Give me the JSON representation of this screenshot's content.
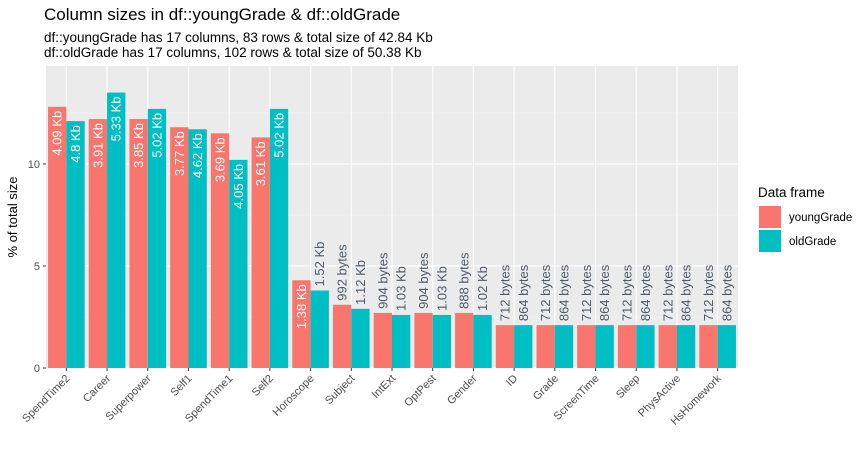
{
  "chart_data": {
    "type": "bar",
    "title": "Column sizes in df::youngGrade & df::oldGrade",
    "subtitle_lines": [
      "df::youngGrade has 17 columns, 83 rows & total size of 42.84 Kb",
      "df::oldGrade has 17 columns, 102 rows & total size of 50.38 Kb"
    ],
    "xlabel": "",
    "ylabel": "% of total size",
    "ylim": [
      0,
      14.8
    ],
    "yticks": [
      0,
      5,
      10
    ],
    "grid": true,
    "legend": {
      "title": "Data frame",
      "position": "right"
    },
    "categories": [
      "SpendTime2",
      "Career",
      "Superpower",
      "Self1",
      "SpendTime1",
      "Self2",
      "Horoscope",
      "Subject",
      "IntExt",
      "OptPest",
      "Gender",
      "ID",
      "Grade",
      "ScreenTime",
      "Sleep",
      "PhysActive",
      "HsHomework"
    ],
    "series": [
      {
        "name": "youngGrade",
        "color": "#F8766D",
        "values": [
          12.8,
          12.2,
          12.2,
          11.8,
          11.5,
          11.3,
          4.3,
          3.1,
          2.7,
          2.7,
          2.7,
          2.1,
          2.1,
          2.1,
          2.1,
          2.1,
          2.1
        ],
        "labels": [
          "4.09 Kb",
          "3.91 Kb",
          "3.85 Kb",
          "3.77 Kb",
          "3.69 Kb",
          "3.61 Kb",
          "1.38 Kb",
          "992 bytes",
          "904 bytes",
          "904 bytes",
          "888 bytes",
          "712 bytes",
          "712 bytes",
          "712 bytes",
          "712 bytes",
          "712 bytes",
          "712 bytes"
        ]
      },
      {
        "name": "oldGrade",
        "color": "#00BFC4",
        "values": [
          12.1,
          13.5,
          12.7,
          11.7,
          10.2,
          12.7,
          3.8,
          2.9,
          2.6,
          2.6,
          2.6,
          2.1,
          2.1,
          2.1,
          2.1,
          2.1,
          2.1
        ],
        "labels": [
          "4.8 Kb",
          "5.33 Kb",
          "5.02 Kb",
          "4.62 Kb",
          "4.05 Kb",
          "5.02 Kb",
          "1.52 Kb",
          "1.12 Kb",
          "1.03 Kb",
          "1.03 Kb",
          "1.02 Kb",
          "864 bytes",
          "864 bytes",
          "864 bytes",
          "864 bytes",
          "864 bytes",
          "864 bytes"
        ]
      }
    ],
    "outside_label_color": "#4d5a6a"
  }
}
